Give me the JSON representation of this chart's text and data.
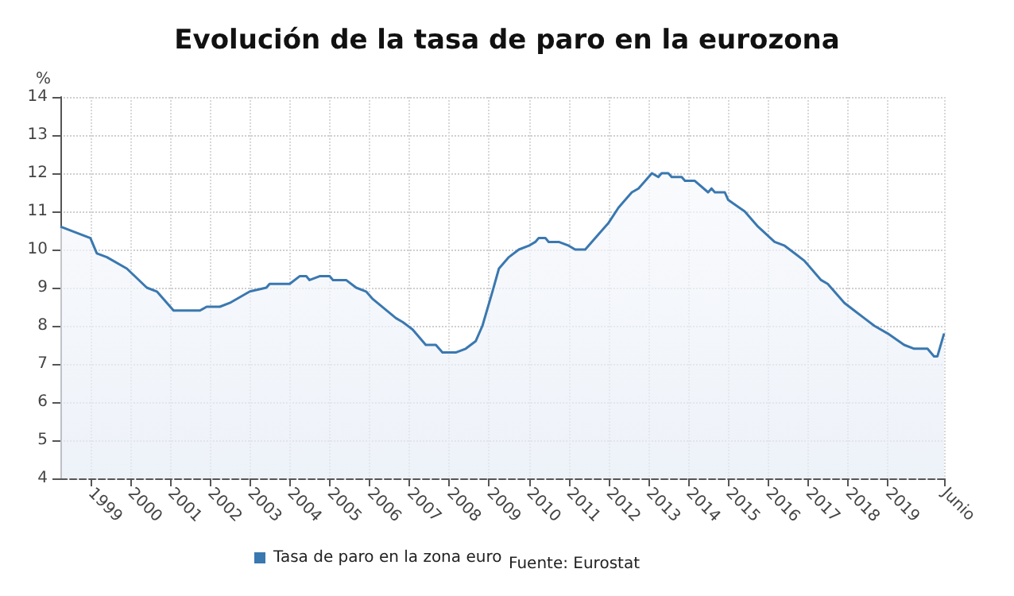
{
  "chart_data": {
    "type": "area",
    "title": "Evolución de la tasa de paro en la eurozona",
    "ylabel": "%",
    "x": [
      "1998-04",
      "1999-01",
      "1999-03",
      "1999-06",
      "1999-12",
      "2000-06",
      "2000-09",
      "2001-02",
      "2001-10",
      "2001-12",
      "2002-04",
      "2002-07",
      "2003-01",
      "2003-06",
      "2003-07",
      "2004-01",
      "2004-04",
      "2004-06",
      "2004-07",
      "2004-10",
      "2005-01",
      "2005-02",
      "2005-06",
      "2005-09",
      "2005-12",
      "2006-02",
      "2006-09",
      "2006-11",
      "2007-02",
      "2007-06",
      "2007-09",
      "2007-11",
      "2008-03",
      "2008-06",
      "2008-09",
      "2008-11",
      "2009-02",
      "2009-04",
      "2009-07",
      "2009-10",
      "2010-01",
      "2010-03",
      "2010-04",
      "2010-06",
      "2010-07",
      "2010-10",
      "2011-01",
      "2011-03",
      "2011-06",
      "2011-09",
      "2012-01",
      "2012-04",
      "2012-08",
      "2012-10",
      "2013-02",
      "2013-04",
      "2013-05",
      "2013-07",
      "2013-08",
      "2013-11",
      "2013-12",
      "2014-03",
      "2014-07",
      "2014-08",
      "2014-09",
      "2014-12",
      "2015-01",
      "2015-06",
      "2015-10",
      "2016-03",
      "2016-06",
      "2016-09",
      "2016-12",
      "2017-05",
      "2017-07",
      "2017-12",
      "2018-03",
      "2018-06",
      "2018-09",
      "2019-01",
      "2019-06",
      "2019-09",
      "2020-01",
      "2020-03",
      "2020-04",
      "2020-06"
    ],
    "series": [
      {
        "name": "Tasa de paro en la zona euro",
        "color": "#3a78b0",
        "values": [
          10.6,
          10.3,
          9.9,
          9.8,
          9.5,
          9.0,
          8.9,
          8.4,
          8.4,
          8.5,
          8.5,
          8.6,
          8.9,
          9.0,
          9.1,
          9.1,
          9.3,
          9.3,
          9.2,
          9.3,
          9.3,
          9.2,
          9.2,
          9.0,
          8.9,
          8.7,
          8.2,
          8.1,
          7.9,
          7.5,
          7.5,
          7.3,
          7.3,
          7.4,
          7.6,
          8.0,
          8.9,
          9.5,
          9.8,
          10.0,
          10.1,
          10.2,
          10.3,
          10.3,
          10.2,
          10.2,
          10.1,
          10.0,
          10.0,
          10.3,
          10.7,
          11.1,
          11.5,
          11.6,
          12.0,
          11.9,
          12.0,
          12.0,
          11.9,
          11.9,
          11.8,
          11.8,
          11.5,
          11.6,
          11.5,
          11.5,
          11.3,
          11.0,
          10.6,
          10.2,
          10.1,
          9.9,
          9.7,
          9.2,
          9.1,
          8.6,
          8.4,
          8.2,
          8.0,
          7.8,
          7.5,
          7.4,
          7.4,
          7.2,
          7.2,
          7.8
        ]
      }
    ],
    "xlim": [
      "1998-04",
      "2020-06"
    ],
    "xticks": [
      {
        "value": "1999-01",
        "label": "1999"
      },
      {
        "value": "2000-01",
        "label": "2000"
      },
      {
        "value": "2001-01",
        "label": "2001"
      },
      {
        "value": "2002-01",
        "label": "2002"
      },
      {
        "value": "2003-01",
        "label": "2003"
      },
      {
        "value": "2004-01",
        "label": "2004"
      },
      {
        "value": "2005-01",
        "label": "2005"
      },
      {
        "value": "2006-01",
        "label": "2006"
      },
      {
        "value": "2007-01",
        "label": "2007"
      },
      {
        "value": "2008-01",
        "label": "2008"
      },
      {
        "value": "2009-01",
        "label": "2009"
      },
      {
        "value": "2010-01",
        "label": "2010"
      },
      {
        "value": "2011-01",
        "label": "2011"
      },
      {
        "value": "2012-01",
        "label": "2012"
      },
      {
        "value": "2013-01",
        "label": "2013"
      },
      {
        "value": "2014-01",
        "label": "2014"
      },
      {
        "value": "2015-01",
        "label": "2015"
      },
      {
        "value": "2016-01",
        "label": "2016"
      },
      {
        "value": "2017-01",
        "label": "2017"
      },
      {
        "value": "2018-01",
        "label": "2018"
      },
      {
        "value": "2019-01",
        "label": "2019"
      },
      {
        "value": "2020-06",
        "label": "Junio"
      }
    ],
    "ylim": [
      4,
      14
    ],
    "yticks": [
      4,
      5,
      6,
      7,
      8,
      9,
      10,
      11,
      12,
      13,
      14
    ],
    "grid": true,
    "legend": "bottom",
    "annotations": [
      "Fuente: Eurostat"
    ]
  }
}
